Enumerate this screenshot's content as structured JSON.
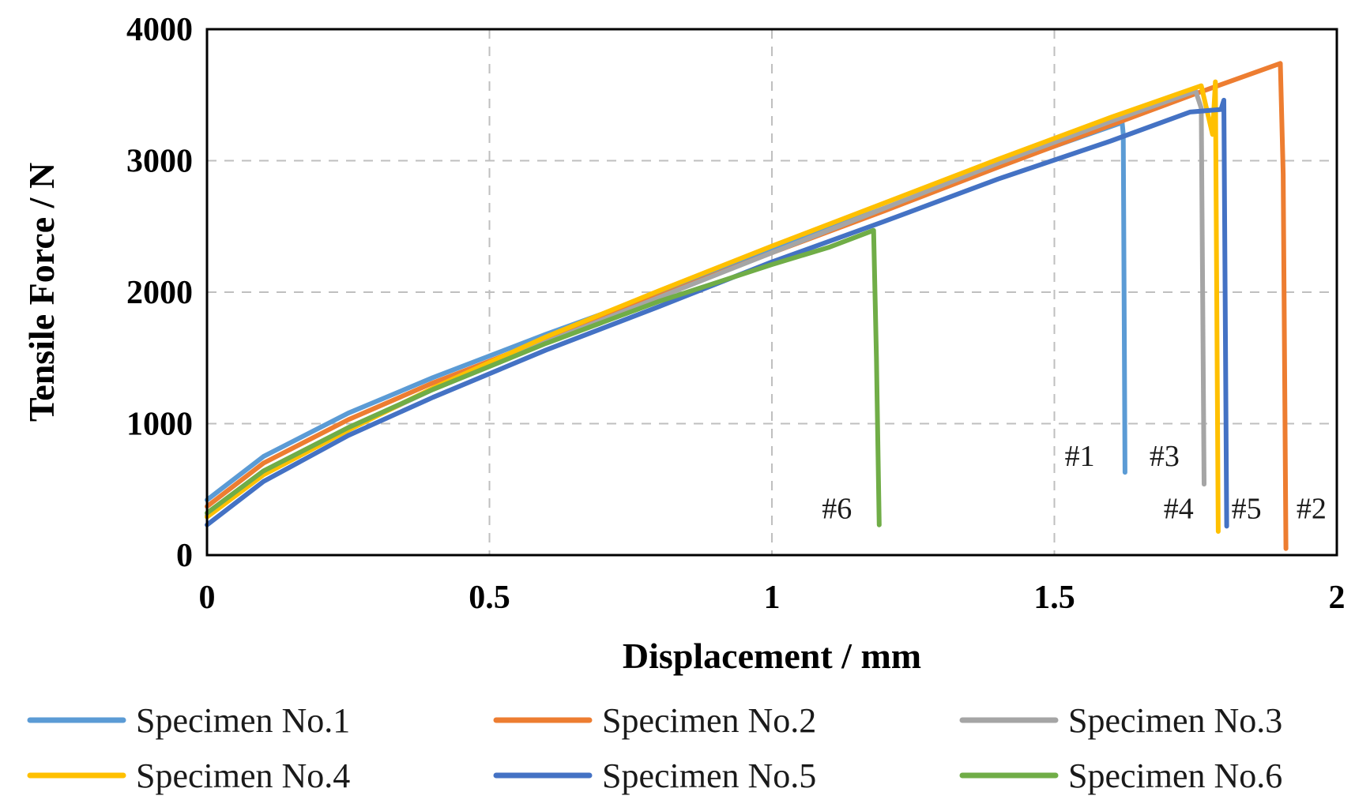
{
  "chart_data": {
    "type": "line",
    "title": "",
    "xlabel": "Displacement / mm",
    "ylabel": "Tensile Force / N",
    "xlim": [
      0,
      2
    ],
    "ylim": [
      0,
      4000
    ],
    "xticks": [
      0,
      0.5,
      1,
      1.5,
      2
    ],
    "xtick_labels": [
      "0",
      "0.5",
      "1",
      "1.5",
      "2"
    ],
    "yticks": [
      0,
      1000,
      2000,
      3000,
      4000
    ],
    "ytick_labels": [
      "0",
      "1000",
      "2000",
      "3000",
      "4000"
    ],
    "grid": true,
    "legend_position": "bottom",
    "series": [
      {
        "name": "Specimen No.1",
        "color": "#5b9bd5",
        "points": [
          [
            0,
            420
          ],
          [
            0.1,
            750
          ],
          [
            0.25,
            1080
          ],
          [
            0.4,
            1350
          ],
          [
            0.6,
            1680
          ],
          [
            0.8,
            1990
          ],
          [
            1.0,
            2320
          ],
          [
            1.2,
            2640
          ],
          [
            1.4,
            2960
          ],
          [
            1.6,
            3260
          ],
          [
            1.62,
            3290
          ],
          [
            1.622,
            3200
          ],
          [
            1.625,
            630
          ]
        ]
      },
      {
        "name": "Specimen No.2",
        "color": "#ed7d31",
        "points": [
          [
            0,
            370
          ],
          [
            0.1,
            700
          ],
          [
            0.25,
            1030
          ],
          [
            0.4,
            1310
          ],
          [
            0.6,
            1640
          ],
          [
            0.8,
            1970
          ],
          [
            1.0,
            2300
          ],
          [
            1.2,
            2620
          ],
          [
            1.4,
            2950
          ],
          [
            1.6,
            3270
          ],
          [
            1.75,
            3510
          ],
          [
            1.9,
            3740
          ],
          [
            1.905,
            2900
          ],
          [
            1.91,
            50
          ]
        ]
      },
      {
        "name": "Specimen No.3",
        "color": "#a5a5a5",
        "points": [
          [
            0,
            300
          ],
          [
            0.1,
            620
          ],
          [
            0.25,
            960
          ],
          [
            0.4,
            1260
          ],
          [
            0.6,
            1620
          ],
          [
            0.8,
            1960
          ],
          [
            1.0,
            2300
          ],
          [
            1.2,
            2640
          ],
          [
            1.4,
            2980
          ],
          [
            1.6,
            3300
          ],
          [
            1.75,
            3530
          ],
          [
            1.76,
            3400
          ],
          [
            1.765,
            540
          ]
        ]
      },
      {
        "name": "Specimen No.4",
        "color": "#ffc000",
        "points": [
          [
            0,
            290
          ],
          [
            0.1,
            610
          ],
          [
            0.25,
            950
          ],
          [
            0.4,
            1270
          ],
          [
            0.6,
            1660
          ],
          [
            0.8,
            2010
          ],
          [
            1.0,
            2350
          ],
          [
            1.2,
            2680
          ],
          [
            1.4,
            3010
          ],
          [
            1.6,
            3330
          ],
          [
            1.76,
            3570
          ],
          [
            1.78,
            3200
          ],
          [
            1.785,
            3600
          ],
          [
            1.79,
            180
          ]
        ]
      },
      {
        "name": "Specimen No.5",
        "color": "#4472c4",
        "points": [
          [
            0,
            230
          ],
          [
            0.1,
            560
          ],
          [
            0.25,
            910
          ],
          [
            0.4,
            1200
          ],
          [
            0.6,
            1560
          ],
          [
            0.8,
            1890
          ],
          [
            1.0,
            2230
          ],
          [
            1.2,
            2540
          ],
          [
            1.4,
            2860
          ],
          [
            1.6,
            3150
          ],
          [
            1.74,
            3370
          ],
          [
            1.795,
            3390
          ],
          [
            1.8,
            3460
          ],
          [
            1.805,
            220
          ]
        ]
      },
      {
        "name": "Specimen No.6",
        "color": "#70ad47",
        "points": [
          [
            0,
            320
          ],
          [
            0.1,
            640
          ],
          [
            0.25,
            970
          ],
          [
            0.4,
            1260
          ],
          [
            0.6,
            1610
          ],
          [
            0.8,
            1930
          ],
          [
            1.0,
            2210
          ],
          [
            1.1,
            2340
          ],
          [
            1.18,
            2470
          ],
          [
            1.185,
            1500
          ],
          [
            1.19,
            230
          ]
        ]
      }
    ],
    "annotations": [
      {
        "text": "#1",
        "x": 1.545,
        "y": 680
      },
      {
        "text": "#3",
        "x": 1.695,
        "y": 680
      },
      {
        "text": "#6",
        "x": 1.115,
        "y": 280
      },
      {
        "text": "#4",
        "x": 1.72,
        "y": 280
      },
      {
        "text": "#5",
        "x": 1.84,
        "y": 280
      },
      {
        "text": "#2",
        "x": 1.955,
        "y": 280
      }
    ]
  }
}
